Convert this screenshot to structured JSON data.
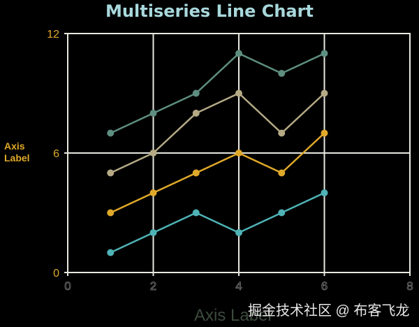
{
  "chart_data": {
    "type": "line",
    "title": "Multiseries Line Chart",
    "xlabel": "Axis Label",
    "ylabel": "Axis Label",
    "xlim": [
      0,
      8
    ],
    "ylim": [
      0,
      12
    ],
    "xticks": [
      "0",
      "2",
      "4",
      "6",
      "8"
    ],
    "yticks": [
      "0",
      "6",
      "12"
    ],
    "grid": true,
    "x": [
      1,
      2,
      3,
      4,
      5,
      6
    ],
    "series": [
      {
        "values": [
          1,
          2,
          3,
          2,
          3,
          4
        ],
        "color": "#4fb3b6"
      },
      {
        "values": [
          3,
          4,
          5,
          6,
          5,
          7
        ],
        "color": "#e0a92a"
      },
      {
        "values": [
          5,
          6,
          8,
          9,
          7,
          9
        ],
        "color": "#b5aa86"
      },
      {
        "values": [
          7,
          8,
          9,
          11,
          10,
          11
        ],
        "color": "#5e8e80"
      }
    ]
  },
  "watermark": "掘金技术社区 @ 布客飞龙"
}
